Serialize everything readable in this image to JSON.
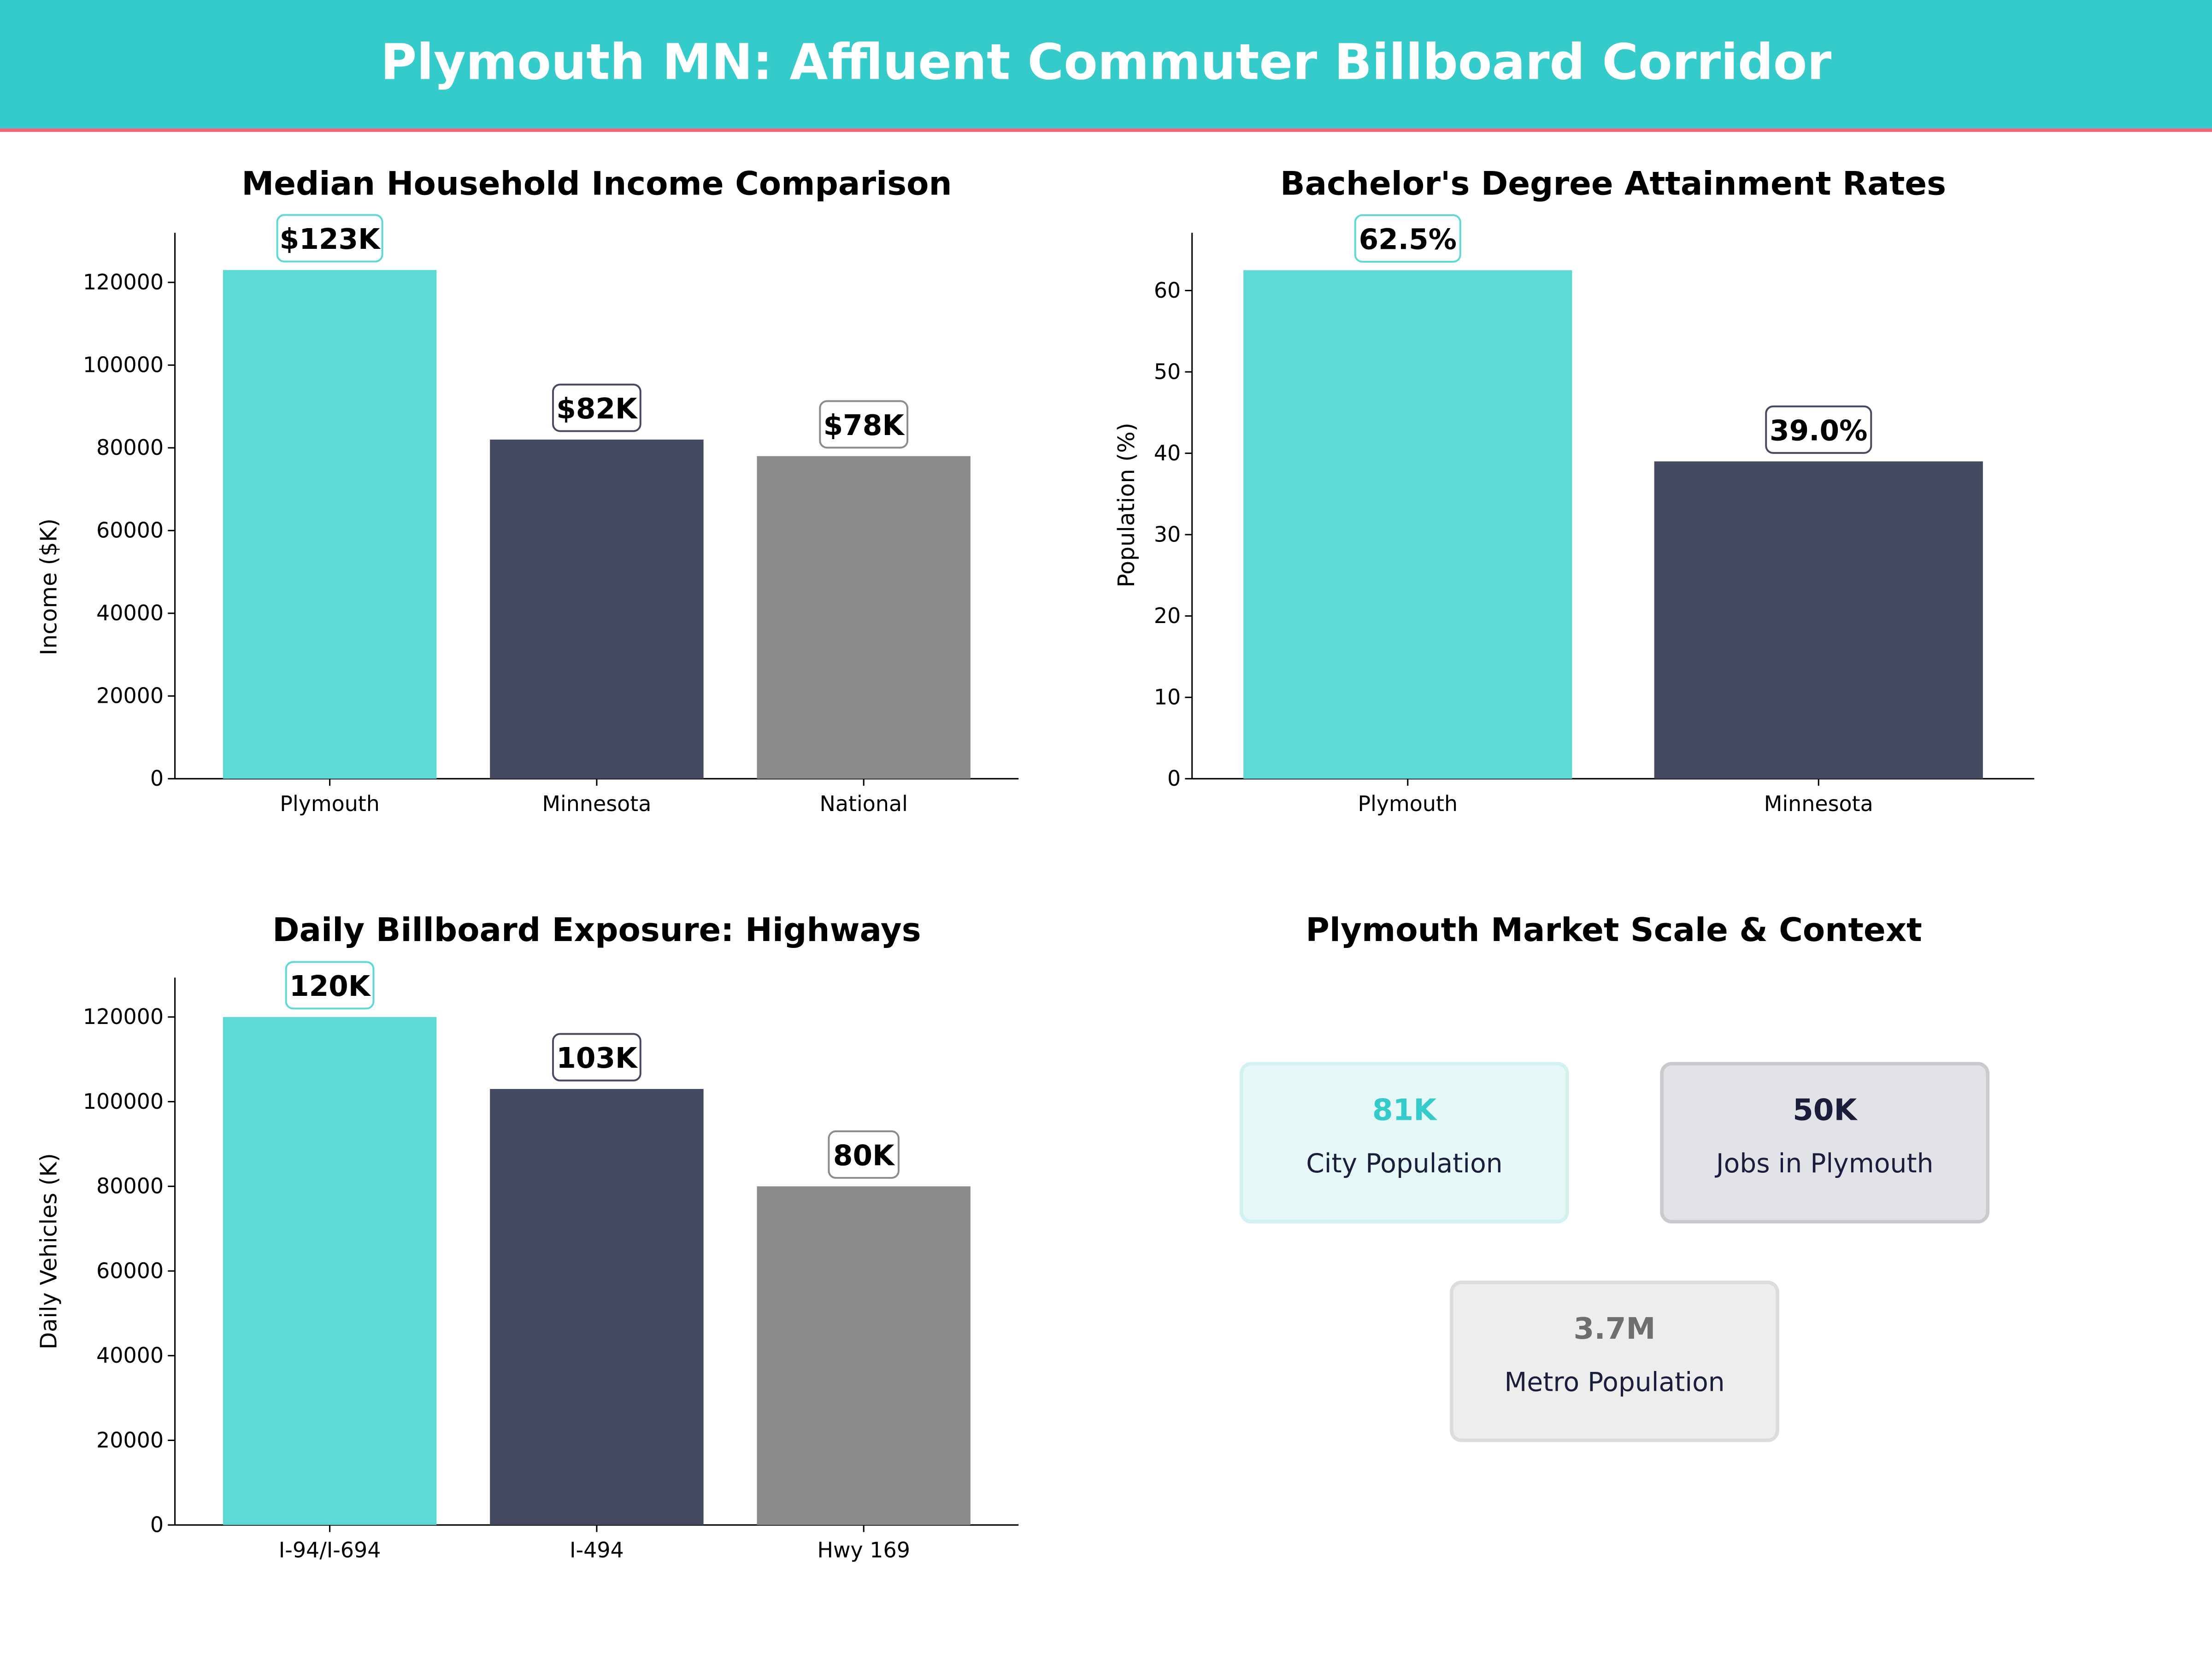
{
  "header": {
    "title": "Plymouth MN: Affluent Commuter Billboard Corridor",
    "bg": "#36CBCB",
    "accent_line": "#F0647A"
  },
  "chart_data": [
    {
      "type": "bar",
      "title": "Median Household Income Comparison",
      "xlabel": "",
      "ylabel": "Income ($K)",
      "categories": [
        "Plymouth",
        "Minnesota",
        "National"
      ],
      "values": [
        123000,
        82000,
        78000
      ],
      "data_labels": [
        "$123K",
        "$82K",
        "$78K"
      ],
      "colors": [
        "#5DD8D5",
        "#464A60",
        "#8B8B8B"
      ],
      "ylim": [
        0,
        132000
      ],
      "yticks": [
        0,
        20000,
        40000,
        60000,
        80000,
        100000,
        120000
      ],
      "grid": false
    },
    {
      "type": "bar",
      "title": "Bachelor's Degree Attainment Rates",
      "xlabel": "",
      "ylabel": "Population (%)",
      "categories": [
        "Plymouth",
        "Minnesota"
      ],
      "values": [
        62.5,
        39.0
      ],
      "data_labels": [
        "62.5%",
        "39.0%"
      ],
      "colors": [
        "#5DD8D5",
        "#464A60"
      ],
      "ylim": [
        0,
        67.1
      ],
      "yticks": [
        0,
        10,
        20,
        30,
        40,
        50,
        60
      ],
      "grid": false
    },
    {
      "type": "bar",
      "title": "Daily Billboard Exposure: Highways",
      "xlabel": "",
      "ylabel": "Daily Vehicles (K)",
      "categories": [
        "I-94/I-694",
        "I-494",
        "Hwy 169"
      ],
      "values": [
        120000,
        103000,
        80000
      ],
      "data_labels": [
        "120K",
        "103K",
        "80K"
      ],
      "colors": [
        "#5DD8D5",
        "#464A60",
        "#8B8B8B"
      ],
      "ylim": [
        0,
        129300
      ],
      "yticks": [
        0,
        20000,
        40000,
        60000,
        80000,
        100000,
        120000
      ],
      "grid": false
    }
  ],
  "context_panel": {
    "title": "Plymouth Market Scale & Context",
    "cards": [
      {
        "value": "81K",
        "label": "City Population",
        "value_color": "#36CBCB",
        "bg": "#E5F7F7",
        "border": "#D2F2F1"
      },
      {
        "value": "50K",
        "label": "Jobs in Plymouth",
        "value_color": "#1A1E3A",
        "bg": "#E2E3E7",
        "border": "#C9CACF"
      },
      {
        "value": "3.7M",
        "label": "Metro Population",
        "value_color": "#6E6E6E",
        "bg": "#EDEDED",
        "border": "#DCDCDC"
      }
    ]
  }
}
